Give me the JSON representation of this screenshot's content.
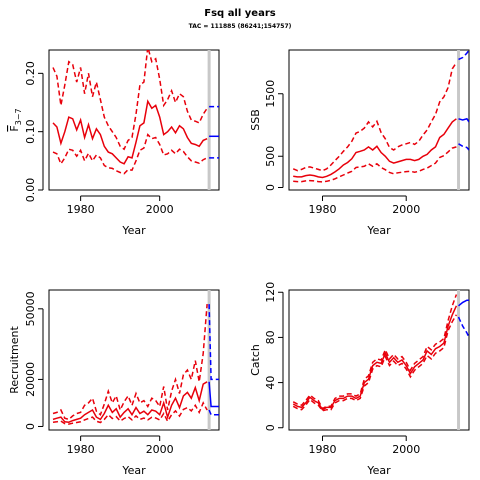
{
  "title": "Fsq all years",
  "subtitle": "TAC = 111885 (86241;154757)",
  "colors": {
    "history": "#e8000b",
    "forecast": "#0000ff",
    "assessment_line": "#c8c8c8",
    "axis": "#000000"
  },
  "chart_data": [
    {
      "type": "line",
      "panel": "F",
      "xlabel": "Year",
      "ylabel": "F3-7",
      "xlim": [
        1972,
        2015
      ],
      "ylim": [
        0,
        0.24
      ],
      "xticks": [
        1980,
        2000
      ],
      "yticks": [
        0.0,
        0.1,
        0.2
      ],
      "ytick_labels": [
        "0.00",
        "0.10",
        "0.20"
      ],
      "vline_x": 2012.5,
      "x": [
        1973,
        1974,
        1975,
        1976,
        1977,
        1978,
        1979,
        1980,
        1981,
        1982,
        1983,
        1984,
        1985,
        1986,
        1987,
        1988,
        1989,
        1990,
        1991,
        1992,
        1993,
        1994,
        1995,
        1996,
        1997,
        1998,
        1999,
        2000,
        2001,
        2002,
        2003,
        2004,
        2005,
        2006,
        2007,
        2008,
        2009,
        2010,
        2011,
        2012
      ],
      "series": [
        {
          "role": "median",
          "style": "solid",
          "color": "#e8000b",
          "values": [
            0.115,
            0.108,
            0.08,
            0.1,
            0.125,
            0.122,
            0.103,
            0.12,
            0.09,
            0.112,
            0.088,
            0.105,
            0.095,
            0.075,
            0.065,
            0.062,
            0.055,
            0.048,
            0.045,
            0.057,
            0.055,
            0.082,
            0.11,
            0.115,
            0.152,
            0.14,
            0.145,
            0.125,
            0.095,
            0.1,
            0.108,
            0.098,
            0.11,
            0.105,
            0.09,
            0.08,
            0.078,
            0.075,
            0.085,
            0.088
          ]
        },
        {
          "role": "upper",
          "style": "dashed",
          "color": "#e8000b",
          "values": [
            0.21,
            0.195,
            0.145,
            0.18,
            0.22,
            0.215,
            0.185,
            0.21,
            0.165,
            0.2,
            0.16,
            0.185,
            0.155,
            0.125,
            0.11,
            0.1,
            0.09,
            0.075,
            0.07,
            0.085,
            0.09,
            0.13,
            0.18,
            0.185,
            0.245,
            0.22,
            0.225,
            0.19,
            0.145,
            0.155,
            0.17,
            0.15,
            0.165,
            0.16,
            0.135,
            0.12,
            0.118,
            0.115,
            0.13,
            0.14
          ]
        },
        {
          "role": "lower",
          "style": "dashed",
          "color": "#e8000b",
          "values": [
            0.065,
            0.062,
            0.045,
            0.055,
            0.07,
            0.068,
            0.058,
            0.068,
            0.05,
            0.063,
            0.05,
            0.06,
            0.055,
            0.042,
            0.038,
            0.037,
            0.033,
            0.03,
            0.028,
            0.035,
            0.034,
            0.05,
            0.068,
            0.072,
            0.095,
            0.088,
            0.09,
            0.078,
            0.06,
            0.062,
            0.068,
            0.062,
            0.07,
            0.066,
            0.057,
            0.05,
            0.048,
            0.046,
            0.052,
            0.055
          ]
        }
      ],
      "forecast_x": [
        2012.5,
        2015
      ],
      "forecast": [
        {
          "role": "median",
          "style": "solid",
          "values": [
            0.092,
            0.092
          ]
        },
        {
          "role": "upper",
          "style": "dashed",
          "values": [
            0.143,
            0.143
          ]
        },
        {
          "role": "lower",
          "style": "dashed",
          "values": [
            0.055,
            0.055
          ]
        }
      ]
    },
    {
      "type": "line",
      "panel": "SSB",
      "xlabel": "Year",
      "ylabel": "SSB",
      "xlim": [
        1972,
        2015
      ],
      "ylim": [
        -40,
        2200
      ],
      "xticks": [
        1980,
        2000
      ],
      "yticks": [
        0,
        500,
        1500
      ],
      "ytick_labels": [
        "0",
        "500",
        "1500"
      ],
      "vline_x": 2012.5,
      "x": [
        1973,
        1974,
        1975,
        1976,
        1977,
        1978,
        1979,
        1980,
        1981,
        1982,
        1983,
        1984,
        1985,
        1986,
        1987,
        1988,
        1989,
        1990,
        1991,
        1992,
        1993,
        1994,
        1995,
        1996,
        1997,
        1998,
        1999,
        2000,
        2001,
        2002,
        2003,
        2004,
        2005,
        2006,
        2007,
        2008,
        2009,
        2010,
        2011,
        2012
      ],
      "series": [
        {
          "role": "median",
          "style": "solid",
          "color": "#e8000b",
          "values": [
            180,
            170,
            170,
            190,
            200,
            190,
            170,
            160,
            180,
            210,
            250,
            300,
            360,
            400,
            460,
            560,
            580,
            600,
            650,
            600,
            660,
            560,
            500,
            420,
            390,
            410,
            430,
            450,
            450,
            430,
            450,
            500,
            530,
            600,
            650,
            800,
            850,
            950,
            1050,
            1100
          ]
        },
        {
          "role": "upper",
          "style": "dashed",
          "color": "#e8000b",
          "values": [
            300,
            270,
            290,
            320,
            330,
            310,
            290,
            270,
            300,
            360,
            430,
            500,
            580,
            650,
            740,
            870,
            900,
            950,
            1050,
            970,
            1060,
            880,
            780,
            640,
            600,
            650,
            680,
            700,
            720,
            690,
            740,
            840,
            920,
            1050,
            1170,
            1370,
            1450,
            1600,
            1900,
            2000
          ]
        },
        {
          "role": "lower",
          "style": "dashed",
          "color": "#e8000b",
          "values": [
            100,
            95,
            95,
            105,
            110,
            105,
            95,
            90,
            100,
            115,
            140,
            170,
            200,
            230,
            260,
            320,
            330,
            340,
            380,
            340,
            380,
            320,
            285,
            240,
            220,
            235,
            245,
            255,
            260,
            245,
            260,
            290,
            310,
            350,
            390,
            480,
            510,
            570,
            630,
            650
          ]
        }
      ],
      "forecast_x": [
        2012.5,
        2013.5,
        2014.5,
        2015
      ],
      "forecast": [
        {
          "role": "median",
          "style": "solid",
          "values": [
            1100,
            1080,
            1100,
            1050
          ]
        },
        {
          "role": "upper",
          "style": "dashed",
          "values": [
            2050,
            2080,
            2150,
            2200
          ]
        },
        {
          "role": "lower",
          "style": "dashed",
          "values": [
            700,
            660,
            640,
            600
          ]
        }
      ]
    },
    {
      "type": "line",
      "panel": "Recruitment",
      "xlabel": "Year",
      "ylabel": "Recruitment",
      "xlim": [
        1972,
        2015
      ],
      "ylim": [
        -1500,
        58000
      ],
      "xticks": [
        1980,
        2000
      ],
      "yticks": [
        0,
        20000,
        50000
      ],
      "ytick_labels": [
        "0",
        "20000",
        "50000"
      ],
      "vline_x": 2012.5,
      "x": [
        1973,
        1974,
        1975,
        1976,
        1977,
        1978,
        1979,
        1980,
        1981,
        1982,
        1983,
        1984,
        1985,
        1986,
        1987,
        1988,
        1989,
        1990,
        1991,
        1992,
        1993,
        1994,
        1995,
        1996,
        1997,
        1998,
        1999,
        2000,
        2001,
        2002,
        2003,
        2004,
        2005,
        2006,
        2007,
        2008,
        2009,
        2010,
        2011,
        2012
      ],
      "series": [
        {
          "role": "median",
          "style": "solid",
          "color": "#e8000b",
          "values": [
            3000,
            3500,
            4000,
            2000,
            1800,
            2500,
            3000,
            3500,
            5000,
            6000,
            7000,
            4000,
            3000,
            5500,
            9000,
            6000,
            7500,
            4000,
            6000,
            7500,
            5000,
            8000,
            5500,
            6500,
            5000,
            7000,
            6500,
            5000,
            10000,
            4000,
            9000,
            12000,
            8000,
            13000,
            14500,
            12000,
            16500,
            11000,
            18000,
            19000
          ]
        },
        {
          "role": "upper",
          "style": "dashed",
          "color": "#e8000b",
          "values": [
            5500,
            6000,
            7000,
            3500,
            3000,
            4500,
            5500,
            6000,
            9000,
            10000,
            12000,
            6500,
            5000,
            9500,
            15000,
            10000,
            13000,
            7000,
            10500,
            13000,
            9000,
            14000,
            10000,
            11000,
            8500,
            12000,
            11000,
            8500,
            17000,
            7000,
            15000,
            20000,
            14000,
            22000,
            24000,
            20000,
            28000,
            19000,
            31000,
            52000
          ]
        },
        {
          "role": "lower",
          "style": "dashed",
          "color": "#e8000b",
          "values": [
            1800,
            2000,
            2300,
            1200,
            1000,
            1400,
            1700,
            2000,
            2800,
            3400,
            4000,
            2200,
            1700,
            3000,
            5000,
            3400,
            4200,
            2300,
            3400,
            4200,
            2800,
            4500,
            3000,
            3600,
            2800,
            3900,
            3600,
            2800,
            5500,
            2200,
            5000,
            6600,
            4400,
            7200,
            8000,
            6600,
            9000,
            6000,
            10000,
            7000
          ]
        }
      ],
      "forecast_x": [
        2012.5,
        2013,
        2015
      ],
      "forecast": [
        {
          "role": "median",
          "style": "solid",
          "values": [
            19000,
            8500,
            8500
          ]
        },
        {
          "role": "upper",
          "style": "dashed",
          "values": [
            52000,
            20000,
            20000
          ]
        },
        {
          "role": "lower",
          "style": "dashed",
          "values": [
            7000,
            5000,
            5000
          ]
        }
      ]
    },
    {
      "type": "line",
      "panel": "Catch",
      "xlabel": "Year",
      "ylabel": "Catch",
      "xlim": [
        1972,
        2015
      ],
      "ylim": [
        -2,
        122
      ],
      "xticks": [
        1980,
        2000
      ],
      "yticks": [
        0,
        40,
        80,
        120
      ],
      "ytick_labels": [
        "0",
        "40",
        "80",
        "120"
      ],
      "vline_x": 2012.5,
      "x": [
        1973,
        1974,
        1975,
        1976,
        1977,
        1978,
        1979,
        1980,
        1981,
        1982,
        1983,
        1984,
        1985,
        1986,
        1987,
        1988,
        1989,
        1990,
        1991,
        1992,
        1993,
        1994,
        1995,
        1996,
        1997,
        1998,
        1999,
        2000,
        2001,
        2002,
        2003,
        2004,
        2005,
        2006,
        2007,
        2008,
        2009,
        2010,
        2011,
        2012
      ],
      "series": [
        {
          "role": "median",
          "style": "solid",
          "color": "#e8000b",
          "values": [
            21,
            19,
            18,
            22,
            27,
            24,
            22,
            16,
            18,
            18,
            24,
            26,
            26,
            28,
            28,
            26,
            28,
            40,
            43,
            55,
            58,
            57,
            66,
            58,
            62,
            58,
            60,
            55,
            48,
            54,
            57,
            60,
            68,
            65,
            70,
            72,
            75,
            90,
            100,
            108
          ]
        },
        {
          "role": "upper",
          "style": "dashed",
          "color": "#e8000b",
          "values": [
            23,
            21,
            20,
            24,
            29,
            26,
            24,
            17,
            19,
            19,
            26,
            28,
            28,
            30,
            30,
            28,
            30,
            43,
            46,
            58,
            61,
            60,
            69,
            61,
            65,
            61,
            63,
            58,
            51,
            57,
            60,
            63,
            72,
            69,
            74,
            76,
            79,
            95,
            108,
            118
          ]
        },
        {
          "role": "lower",
          "style": "dashed",
          "color": "#e8000b",
          "values": [
            19,
            17,
            16,
            20,
            25,
            22,
            20,
            15,
            16,
            16,
            22,
            24,
            24,
            26,
            26,
            24,
            26,
            37,
            40,
            52,
            55,
            54,
            63,
            55,
            59,
            55,
            57,
            52,
            45,
            51,
            54,
            57,
            64,
            61,
            66,
            68,
            71,
            86,
            94,
            100
          ]
        }
      ],
      "forecast_x": [
        2012.5,
        2013.5,
        2014.5,
        2015
      ],
      "forecast": [
        {
          "role": "median",
          "style": "solid",
          "values": [
            108,
            111,
            113,
            113
          ]
        },
        {
          "role": "upper",
          "style": "dashed",
          "values": [
            130,
            132,
            134,
            136
          ]
        },
        {
          "role": "lower",
          "style": "dashed",
          "values": [
            98,
            90,
            84,
            80
          ]
        }
      ]
    }
  ]
}
